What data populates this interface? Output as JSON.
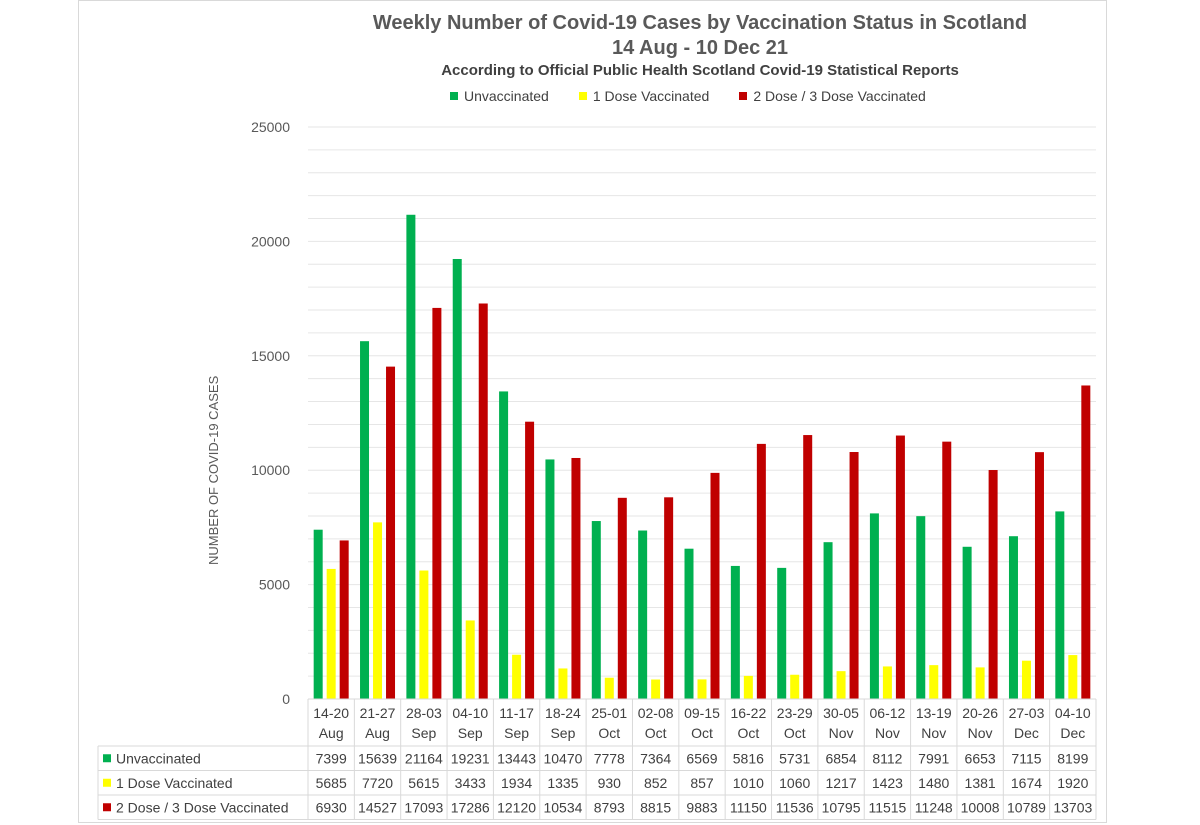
{
  "chart_data": {
    "type": "bar",
    "title": "Weekly Number of Covid-19 Cases by Vaccination Status in Scotland",
    "subtitle": "14 Aug - 10 Dec 21",
    "source_line": "According to Official  Public Health Scotland Covid-19 Statistical Reports",
    "ylabel": "NUMBER OF COVID-19 CASES",
    "ylim": [
      0,
      25000
    ],
    "yticks": [
      0,
      5000,
      10000,
      15000,
      20000,
      25000
    ],
    "grid": true,
    "legend_position": "top",
    "categories": [
      [
        "14-20",
        "Aug"
      ],
      [
        "21-27",
        "Aug"
      ],
      [
        "28-03",
        "Sep"
      ],
      [
        "04-10",
        "Sep"
      ],
      [
        "11-17",
        "Sep"
      ],
      [
        "18-24",
        "Sep"
      ],
      [
        "25-01",
        "Oct"
      ],
      [
        "02-08",
        "Oct"
      ],
      [
        "09-15",
        "Oct"
      ],
      [
        "16-22",
        "Oct"
      ],
      [
        "23-29",
        "Oct"
      ],
      [
        "30-05",
        "Nov"
      ],
      [
        "06-12",
        "Nov"
      ],
      [
        "13-19",
        "Nov"
      ],
      [
        "20-26",
        "Nov"
      ],
      [
        "27-03",
        "Dec"
      ],
      [
        "04-10",
        "Dec"
      ]
    ],
    "series": [
      {
        "name": "Unvaccinated",
        "color": "#00b050",
        "values": [
          7399,
          15639,
          21164,
          19231,
          13443,
          10470,
          7778,
          7364,
          6569,
          5816,
          5731,
          6854,
          8112,
          7991,
          6653,
          7115,
          8199
        ]
      },
      {
        "name": "1 Dose Vaccinated",
        "color": "#ffff00",
        "values": [
          5685,
          7720,
          5615,
          3433,
          1934,
          1335,
          930,
          852,
          857,
          1010,
          1060,
          1217,
          1423,
          1480,
          1381,
          1674,
          1920
        ]
      },
      {
        "name": "2 Dose / 3 Dose Vaccinated",
        "color": "#c00000",
        "values": [
          6930,
          14527,
          17093,
          17286,
          12120,
          10534,
          8793,
          8815,
          9883,
          11150,
          11536,
          10795,
          11515,
          11248,
          10008,
          10789,
          13703
        ]
      }
    ]
  }
}
